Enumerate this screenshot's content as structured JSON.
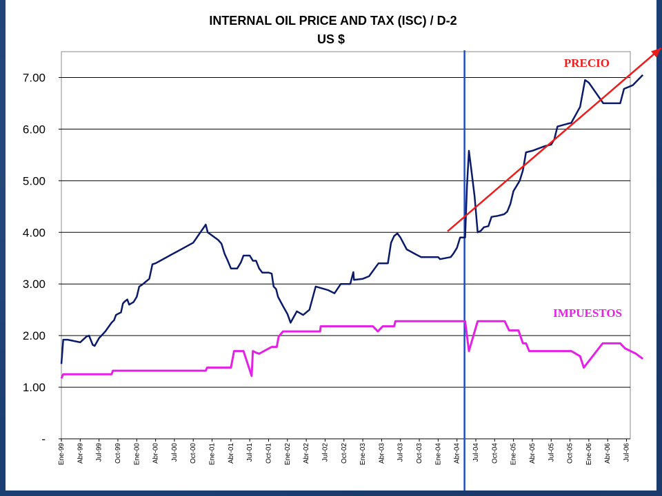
{
  "colors": {
    "background": "#1c3f73",
    "plot_bg": "#ffffff",
    "price": "#0a1a6b",
    "tax": "#e51fe5",
    "trend": "#ee1b1b",
    "marker": "#1f4fc1"
  },
  "chart_data": {
    "type": "line",
    "title": "INTERNAL OIL PRICE AND TAX (ISC) / D-2",
    "subtitle": "US $",
    "xlabel": "",
    "ylabel": "",
    "ylim": [
      0,
      7.5
    ],
    "yticks": [
      {
        "value": 0,
        "label": "-"
      },
      {
        "value": 1,
        "label": "1.00"
      },
      {
        "value": 2,
        "label": "2.00"
      },
      {
        "value": 3,
        "label": "3.00"
      },
      {
        "value": 4,
        "label": "4.00"
      },
      {
        "value": 5,
        "label": "5.00"
      },
      {
        "value": 6,
        "label": "6.00"
      },
      {
        "value": 7,
        "label": "7.00"
      }
    ],
    "grid": "horizontal",
    "xlim": [
      0,
      90.6
    ],
    "xtick_labels": [
      "Ene-99",
      "Abr-99",
      "Jul-99",
      "Oct-99",
      "Ene-00",
      "Abr-00",
      "Jul-00",
      "Oct-00",
      "Ene-01",
      "Abr-01",
      "Jul-01",
      "Oct-01",
      "Ene-02",
      "Abr-02",
      "Jul-02",
      "Oct-02",
      "Ene-03",
      "Abr-03",
      "Jul-03",
      "Oct-03",
      "Ene-04",
      "Abr-04",
      "Jul-04",
      "Oct-04",
      "Ene-05",
      "Abr-05",
      "Jul-05",
      "Oct-05",
      "Ene-06",
      "Abr-06",
      "Jul-06"
    ],
    "series": [
      {
        "name": "PRECIO",
        "points": [
          [
            0,
            1.45
          ],
          [
            0.3,
            1.92
          ],
          [
            1,
            1.92
          ],
          [
            3,
            1.87
          ],
          [
            4,
            1.98
          ],
          [
            4.4,
            2.0
          ],
          [
            5,
            1.82
          ],
          [
            5.3,
            1.8
          ],
          [
            6,
            1.95
          ],
          [
            7,
            2.08
          ],
          [
            8,
            2.25
          ],
          [
            8.4,
            2.3
          ],
          [
            8.7,
            2.4
          ],
          [
            9,
            2.42
          ],
          [
            9.5,
            2.45
          ],
          [
            9.8,
            2.62
          ],
          [
            10,
            2.65
          ],
          [
            10.5,
            2.7
          ],
          [
            10.8,
            2.6
          ],
          [
            11.5,
            2.65
          ],
          [
            12,
            2.75
          ],
          [
            12.4,
            2.95
          ],
          [
            12.8,
            2.98
          ],
          [
            13.5,
            3.05
          ],
          [
            14,
            3.1
          ],
          [
            14.5,
            3.38
          ],
          [
            15,
            3.4
          ],
          [
            21,
            3.8
          ],
          [
            23,
            4.15
          ],
          [
            23.3,
            4.0
          ],
          [
            25,
            3.85
          ],
          [
            25.5,
            3.78
          ],
          [
            26,
            3.58
          ],
          [
            26.5,
            3.45
          ],
          [
            27,
            3.3
          ],
          [
            28,
            3.3
          ],
          [
            28.6,
            3.42
          ],
          [
            29,
            3.55
          ],
          [
            30,
            3.55
          ],
          [
            30.5,
            3.45
          ],
          [
            31,
            3.45
          ],
          [
            31.5,
            3.3
          ],
          [
            32,
            3.22
          ],
          [
            33,
            3.22
          ],
          [
            33.5,
            3.2
          ],
          [
            33.8,
            2.95
          ],
          [
            34.2,
            2.9
          ],
          [
            34.5,
            2.75
          ],
          [
            35.3,
            2.57
          ],
          [
            36,
            2.42
          ],
          [
            36.5,
            2.25
          ],
          [
            37.5,
            2.47
          ],
          [
            38.5,
            2.4
          ],
          [
            39.5,
            2.5
          ],
          [
            40.5,
            2.95
          ],
          [
            42.5,
            2.88
          ],
          [
            43.5,
            2.82
          ],
          [
            44.5,
            3.0
          ],
          [
            46,
            3.0
          ],
          [
            46.5,
            3.23
          ],
          [
            46.6,
            3.08
          ],
          [
            48,
            3.1
          ],
          [
            49,
            3.15
          ],
          [
            50.5,
            3.4
          ],
          [
            52,
            3.4
          ],
          [
            52.5,
            3.8
          ],
          [
            53,
            3.93
          ],
          [
            53.5,
            3.98
          ],
          [
            54,
            3.9
          ],
          [
            55,
            3.67
          ],
          [
            56.5,
            3.57
          ],
          [
            57.3,
            3.52
          ],
          [
            60,
            3.52
          ],
          [
            60.3,
            3.48
          ],
          [
            62,
            3.52
          ],
          [
            62.5,
            3.6
          ],
          [
            63,
            3.7
          ],
          [
            63.5,
            3.9
          ],
          [
            64.3,
            3.9
          ],
          [
            64.6,
            4.9
          ],
          [
            64.9,
            5.58
          ],
          [
            65.3,
            5.2
          ],
          [
            65.8,
            4.7
          ],
          [
            66.3,
            4.0
          ],
          [
            66.8,
            4.03
          ],
          [
            67.3,
            4.1
          ],
          [
            68,
            4.12
          ],
          [
            68.5,
            4.3
          ],
          [
            69.5,
            4.32
          ],
          [
            70.5,
            4.35
          ],
          [
            71,
            4.4
          ],
          [
            71.5,
            4.55
          ],
          [
            72,
            4.8
          ],
          [
            72.5,
            4.9
          ],
          [
            73,
            5.0
          ],
          [
            73.5,
            5.2
          ],
          [
            74,
            5.55
          ],
          [
            75,
            5.58
          ],
          [
            77,
            5.67
          ],
          [
            78,
            5.7
          ],
          [
            78.5,
            5.8
          ],
          [
            79,
            6.05
          ],
          [
            80.5,
            6.1
          ],
          [
            81.2,
            6.12
          ],
          [
            82.6,
            6.43
          ],
          [
            83.4,
            6.95
          ],
          [
            84,
            6.9
          ],
          [
            86.3,
            6.5
          ],
          [
            89,
            6.5
          ],
          [
            89.6,
            6.78
          ],
          [
            91,
            6.85
          ],
          [
            92.6,
            7.05
          ]
        ]
      },
      {
        "name": "IMPUESTOS",
        "points": [
          [
            0,
            1.17
          ],
          [
            0.3,
            1.25
          ],
          [
            8,
            1.25
          ],
          [
            8.2,
            1.32
          ],
          [
            23,
            1.32
          ],
          [
            23.2,
            1.38
          ],
          [
            27,
            1.38
          ],
          [
            27.5,
            1.7
          ],
          [
            29,
            1.7
          ],
          [
            30.3,
            1.22
          ],
          [
            30.5,
            1.7
          ],
          [
            31,
            1.67
          ],
          [
            31.5,
            1.65
          ],
          [
            33.5,
            1.78
          ],
          [
            34.3,
            1.78
          ],
          [
            34.6,
            1.98
          ],
          [
            35.3,
            2.08
          ],
          [
            41.2,
            2.08
          ],
          [
            41.3,
            2.18
          ],
          [
            49,
            2.18
          ],
          [
            49.6,
            2.18
          ],
          [
            50.4,
            2.08
          ],
          [
            51.2,
            2.18
          ],
          [
            53,
            2.18
          ],
          [
            53.2,
            2.28
          ],
          [
            64.3,
            2.28
          ],
          [
            64.9,
            1.7
          ],
          [
            66.3,
            2.28
          ],
          [
            70.6,
            2.28
          ],
          [
            71.3,
            2.1
          ],
          [
            72.8,
            2.1
          ],
          [
            73.5,
            1.85
          ],
          [
            74,
            1.85
          ],
          [
            74.5,
            1.7
          ],
          [
            81.2,
            1.7
          ],
          [
            82.6,
            1.6
          ],
          [
            83.2,
            1.38
          ],
          [
            86.2,
            1.85
          ],
          [
            89,
            1.85
          ],
          [
            89.8,
            1.75
          ],
          [
            91.5,
            1.65
          ],
          [
            92.6,
            1.55
          ]
        ]
      },
      {
        "name": "trend",
        "points": [
          [
            61.5,
            4.02
          ],
          [
            95.5,
            7.57
          ]
        ]
      }
    ],
    "vertical_marker_x": 64.2,
    "annotations": [
      {
        "text": "PRECIO",
        "series": "PRECIO"
      },
      {
        "text": "IMPUESTOS",
        "series": "IMPUESTOS"
      }
    ]
  }
}
